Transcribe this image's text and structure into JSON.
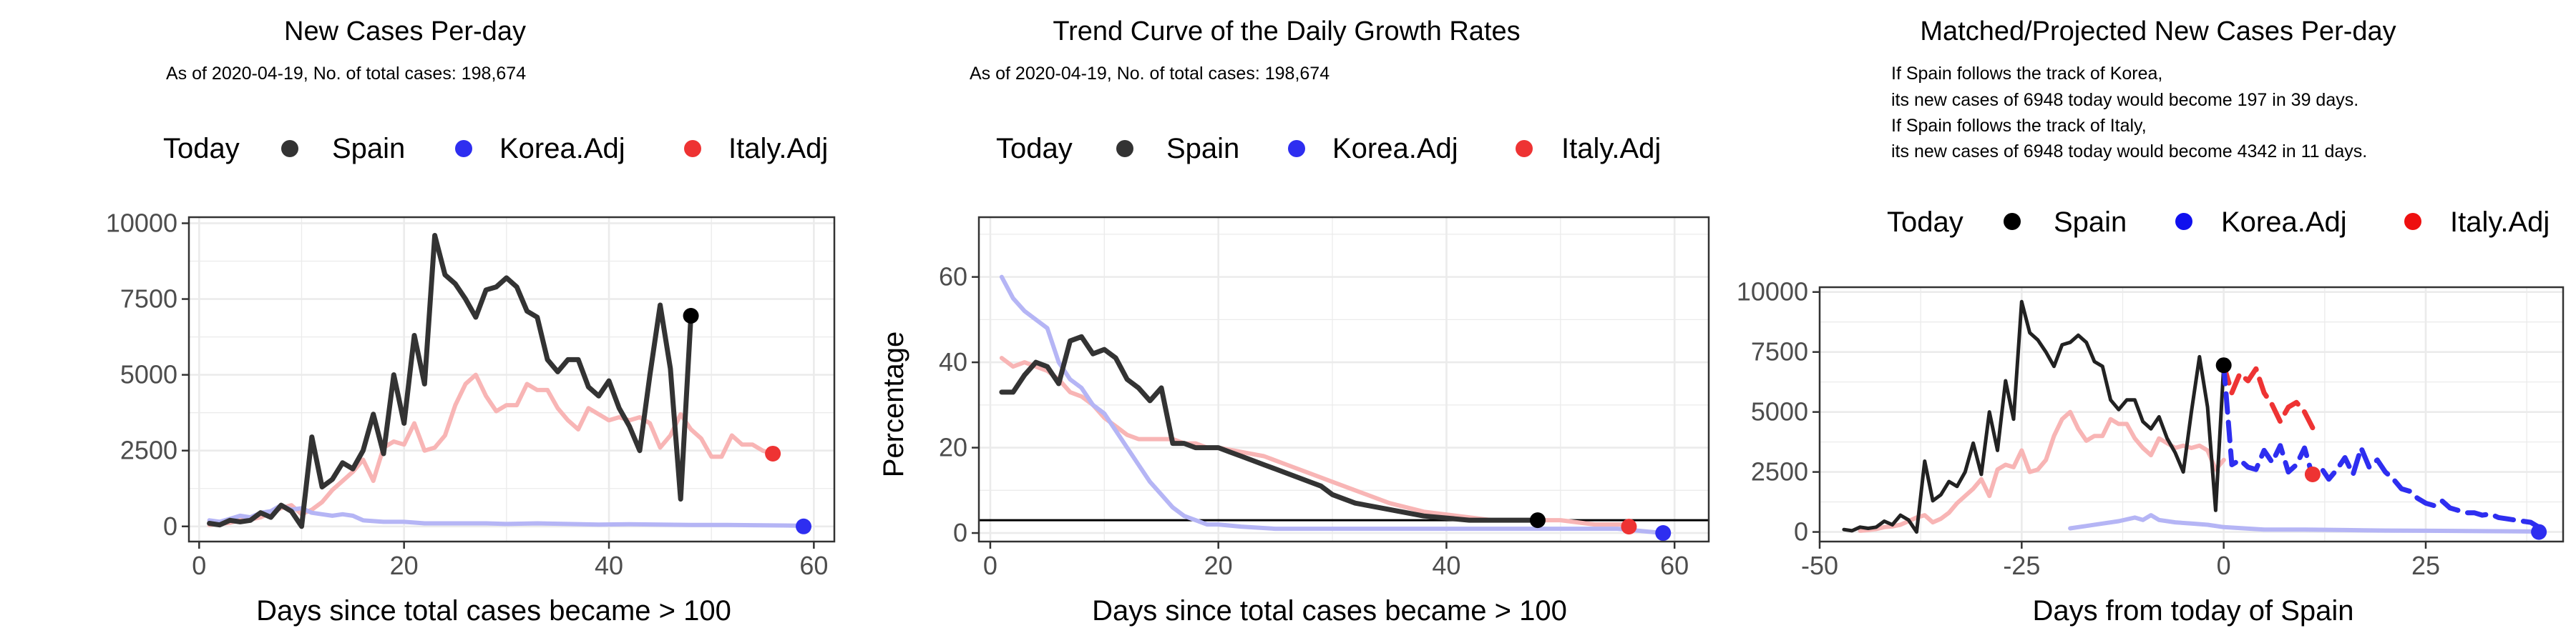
{
  "colors": {
    "spain": "#333333",
    "spain_today": "#000000",
    "korea": "#2e2ef0",
    "korea_light": "#b5b5f5",
    "italy": "#ee3333",
    "italy_light": "#f8b5b5",
    "grid": "#ebebeb",
    "panel_border": "#333333"
  },
  "chart_data": [
    {
      "type": "line",
      "title": "New Cases Per-day",
      "subtitle": "As of 2020-04-19, No. of total cases: 198,674",
      "xlabel": "Days since total cases became > 100",
      "ylabel": "",
      "xlim": [
        -1,
        62
      ],
      "ylim": [
        -500,
        10200
      ],
      "x_ticks": [
        0,
        20,
        40,
        60
      ],
      "y_ticks": [
        0,
        2500,
        5000,
        7500,
        10000
      ],
      "legend": {
        "placement": "top",
        "title": "Today",
        "entries": [
          "Spain",
          "Korea.Adj",
          "Italy.Adj"
        ]
      },
      "series": [
        {
          "key": "italy",
          "name": "Italy.Adj",
          "style": "light",
          "x": [
            1,
            2,
            3,
            4,
            5,
            6,
            7,
            8,
            9,
            10,
            11,
            12,
            13,
            14,
            15,
            16,
            17,
            18,
            19,
            20,
            21,
            22,
            23,
            24,
            25,
            26,
            27,
            28,
            29,
            30,
            31,
            32,
            33,
            34,
            35,
            36,
            37,
            38,
            39,
            40,
            41,
            42,
            43,
            44,
            45,
            46,
            47,
            48,
            49,
            50,
            51,
            52,
            53,
            54,
            55,
            56
          ],
          "y": [
            50,
            80,
            120,
            200,
            230,
            300,
            450,
            600,
            700,
            400,
            550,
            800,
            1200,
            1500,
            1800,
            2200,
            1500,
            2600,
            2800,
            2700,
            3400,
            2500,
            2600,
            3000,
            4000,
            4700,
            5000,
            4300,
            3800,
            4000,
            4000,
            4700,
            4500,
            4500,
            3900,
            3500,
            3200,
            3900,
            3700,
            3500,
            3600,
            3500,
            3600,
            3400,
            2600,
            3000,
            3700,
            3200,
            2900,
            2300,
            2300,
            3000,
            2700,
            2700,
            2500,
            2400
          ]
        },
        {
          "key": "korea",
          "name": "Korea.Adj",
          "style": "light",
          "x": [
            1,
            2,
            3,
            4,
            5,
            6,
            7,
            8,
            9,
            10,
            11,
            12,
            13,
            14,
            15,
            16,
            18,
            20,
            22,
            25,
            28,
            30,
            33,
            36,
            39,
            42,
            45,
            48,
            51,
            54,
            57,
            59
          ],
          "y": [
            200,
            150,
            250,
            350,
            300,
            450,
            500,
            700,
            550,
            600,
            450,
            400,
            350,
            400,
            350,
            200,
            150,
            150,
            100,
            100,
            100,
            80,
            100,
            80,
            60,
            70,
            60,
            50,
            50,
            40,
            30,
            20
          ]
        },
        {
          "key": "spain",
          "name": "Spain",
          "style": "dark",
          "x": [
            1,
            2,
            3,
            4,
            5,
            6,
            7,
            8,
            9,
            10,
            11,
            12,
            13,
            14,
            15,
            16,
            17,
            18,
            19,
            20,
            21,
            22,
            23,
            24,
            25,
            26,
            27,
            28,
            29,
            30,
            31,
            32,
            33,
            34,
            35,
            36,
            37,
            38,
            39,
            40,
            41,
            42,
            43,
            44,
            45,
            46,
            47,
            48
          ],
          "y": [
            100,
            50,
            200,
            150,
            200,
            450,
            300,
            700,
            500,
            0,
            2950,
            1300,
            1550,
            2100,
            1900,
            2500,
            3700,
            2400,
            5000,
            3400,
            6300,
            4700,
            9600,
            8300,
            8000,
            7500,
            6900,
            7800,
            7900,
            8200,
            7900,
            7100,
            6900,
            5500,
            5100,
            5500,
            5500,
            4600,
            4300,
            4800,
            3900,
            3300,
            2500,
            5000,
            7300,
            5200,
            900,
            6948
          ]
        }
      ],
      "points": [
        {
          "key": "spain_today",
          "name": "Spain",
          "x": 48,
          "y": 6948
        },
        {
          "key": "korea",
          "name": "Korea.Adj",
          "x": 59,
          "y": 0
        },
        {
          "key": "italy",
          "name": "Italy.Adj",
          "x": 56,
          "y": 2400
        }
      ]
    },
    {
      "type": "line",
      "title": "Trend Curve of the Daily Growth Rates",
      "subtitle": "As of 2020-04-19, No. of total cases: 198,674",
      "xlabel": "Days since total cases became > 100",
      "ylabel": "Percentage",
      "xlim": [
        -1,
        63
      ],
      "ylim": [
        -2,
        74
      ],
      "x_ticks": [
        0,
        20,
        40,
        60
      ],
      "y_ticks": [
        0,
        20,
        40,
        60
      ],
      "hline": 3,
      "legend": {
        "placement": "top",
        "title": "Today",
        "entries": [
          "Spain",
          "Korea.Adj",
          "Italy.Adj"
        ]
      },
      "series": [
        {
          "key": "italy",
          "name": "Italy.Adj",
          "style": "light",
          "x": [
            1,
            2,
            3,
            4,
            5,
            6,
            7,
            8,
            9,
            10,
            11,
            12,
            13,
            14,
            15,
            16,
            17,
            18,
            19,
            20,
            22,
            24,
            26,
            28,
            30,
            32,
            35,
            38,
            41,
            44,
            47,
            50,
            53,
            56
          ],
          "y": [
            41,
            39,
            40,
            39,
            38,
            36,
            33,
            32,
            30,
            27,
            25,
            23,
            22,
            22,
            22,
            22,
            21,
            21,
            20,
            20,
            19,
            18,
            16,
            14,
            12,
            10,
            7,
            5,
            4,
            3,
            3,
            3,
            2,
            2
          ]
        },
        {
          "key": "korea",
          "name": "Korea.Adj",
          "style": "light",
          "x": [
            1,
            2,
            3,
            4,
            5,
            6,
            7,
            8,
            9,
            10,
            11,
            12,
            13,
            14,
            15,
            16,
            17,
            18,
            19,
            20,
            22,
            25,
            30,
            35,
            40,
            45,
            50,
            55,
            59
          ],
          "y": [
            60,
            55,
            52,
            50,
            48,
            40,
            36,
            34,
            30,
            28,
            24,
            20,
            16,
            12,
            9,
            6,
            4,
            3,
            2,
            2,
            1.5,
            1,
            1,
            1,
            1,
            1,
            1,
            1,
            0
          ]
        },
        {
          "key": "spain",
          "name": "Spain",
          "style": "dark",
          "x": [
            1,
            2,
            3,
            4,
            5,
            6,
            7,
            8,
            9,
            10,
            11,
            12,
            13,
            14,
            15,
            16,
            17,
            18,
            19,
            20,
            21,
            22,
            23,
            24,
            25,
            26,
            27,
            28,
            29,
            30,
            32,
            34,
            36,
            38,
            40,
            42,
            44,
            46,
            48
          ],
          "y": [
            33,
            33,
            37,
            40,
            39,
            35,
            45,
            46,
            42,
            43,
            41,
            36,
            34,
            31,
            34,
            21,
            21,
            20,
            20,
            20,
            19,
            18,
            17,
            16,
            15,
            14,
            13,
            12,
            11,
            9,
            7,
            6,
            5,
            4,
            3.5,
            3,
            3,
            3,
            3
          ]
        }
      ],
      "points": [
        {
          "key": "spain_today",
          "name": "Spain",
          "x": 48,
          "y": 3
        },
        {
          "key": "korea",
          "name": "Korea.Adj",
          "x": 59,
          "y": 0
        },
        {
          "key": "italy",
          "name": "Italy.Adj",
          "x": 56,
          "y": 1.5
        }
      ]
    },
    {
      "type": "line",
      "title": "Matched/Projected New Cases Per-day",
      "annotations": [
        "If Spain follows the track of Korea,",
        "its new cases of 6948 today would become 197 in 39 days.",
        "If Spain follows the track of Italy,",
        "its new cases of 6948 today would become 4342 in 11 days."
      ],
      "xlabel": "Days from today of Spain",
      "ylabel": "",
      "xlim": [
        -50,
        42
      ],
      "ylim": [
        -400,
        10200
      ],
      "x_ticks": [
        -50,
        -25,
        0,
        25
      ],
      "y_ticks": [
        0,
        2500,
        5000,
        7500,
        10000
      ],
      "legend": {
        "placement": "top",
        "title": "Today",
        "entries": [
          "Spain",
          "Korea.Adj",
          "Italy.Adj"
        ]
      },
      "series": [
        {
          "key": "italy",
          "name": "Italy.Adj",
          "style": "light",
          "x": [
            -45,
            -44,
            -43,
            -42,
            -41,
            -40,
            -39,
            -38,
            -37,
            -36,
            -35,
            -34,
            -33,
            -32,
            -31,
            -30,
            -29,
            -28,
            -27,
            -26,
            -25,
            -24,
            -23,
            -22,
            -21,
            -20,
            -19,
            -18,
            -17,
            -16,
            -15,
            -14,
            -13,
            -12,
            -11,
            -10,
            -9,
            -8,
            -7,
            -6,
            -5,
            -4,
            -3,
            -2,
            -1,
            0
          ],
          "y": [
            50,
            80,
            120,
            200,
            230,
            300,
            450,
            600,
            700,
            400,
            550,
            800,
            1200,
            1500,
            1800,
            2200,
            1500,
            2600,
            2800,
            2700,
            3400,
            2500,
            2600,
            3000,
            4000,
            4700,
            5000,
            4300,
            3800,
            4000,
            4000,
            4700,
            4500,
            4500,
            3900,
            3500,
            3200,
            3900,
            3700,
            3500,
            3600,
            3500,
            3600,
            3400,
            2600,
            3000
          ]
        },
        {
          "key": "korea",
          "name": "Korea.Adj",
          "style": "light",
          "x": [
            -19,
            -17,
            -15,
            -13,
            -11,
            -10,
            -9,
            -8,
            -6,
            -4,
            -2,
            0,
            5,
            10,
            15,
            20,
            25,
            30,
            35,
            38
          ],
          "y": [
            150,
            250,
            350,
            450,
            600,
            500,
            700,
            500,
            400,
            350,
            300,
            200,
            100,
            100,
            80,
            60,
            50,
            40,
            30,
            20
          ]
        },
        {
          "key": "spain",
          "name": "Spain",
          "style": "dark-thin",
          "x": [
            -47,
            -46,
            -45,
            -44,
            -43,
            -42,
            -41,
            -40,
            -39,
            -38,
            -37,
            -36,
            -35,
            -34,
            -33,
            -32,
            -31,
            -30,
            -29,
            -28,
            -27,
            -26,
            -25,
            -24,
            -23,
            -22,
            -21,
            -20,
            -19,
            -18,
            -17,
            -16,
            -15,
            -14,
            -13,
            -12,
            -11,
            -10,
            -9,
            -8,
            -7,
            -6,
            -5,
            -4,
            -3,
            -2,
            -1,
            0
          ],
          "y": [
            100,
            50,
            200,
            150,
            200,
            450,
            300,
            700,
            500,
            0,
            2950,
            1300,
            1550,
            2100,
            1900,
            2500,
            3700,
            2400,
            5000,
            3400,
            6300,
            4700,
            9600,
            8300,
            8000,
            7500,
            6900,
            7800,
            7900,
            8200,
            7900,
            7100,
            6900,
            5500,
            5100,
            5500,
            5500,
            4600,
            4300,
            4800,
            3900,
            3300,
            2500,
            5000,
            7300,
            5200,
            900,
            6948
          ]
        },
        {
          "key": "italy",
          "name": "Italy.Adj",
          "style": "dashed",
          "x": [
            0,
            1,
            2,
            3,
            4,
            5,
            6,
            7,
            8,
            9,
            10,
            11
          ],
          "y": [
            6948,
            5800,
            6600,
            6300,
            6800,
            5800,
            5300,
            4600,
            5200,
            5400,
            5000,
            4342
          ]
        },
        {
          "key": "korea",
          "name": "Korea.Adj",
          "style": "dashed",
          "x": [
            0,
            1,
            2,
            3,
            4,
            5,
            6,
            7,
            8,
            9,
            10,
            11,
            12,
            13,
            14,
            15,
            16,
            17,
            18,
            19,
            20,
            21,
            22,
            23,
            24,
            25,
            26,
            27,
            28,
            29,
            30,
            31,
            32,
            33,
            34,
            35,
            36,
            37,
            38,
            39
          ],
          "y": [
            6948,
            2800,
            3000,
            2700,
            2600,
            3400,
            2900,
            3600,
            2500,
            2800,
            3500,
            2300,
            2700,
            2200,
            2600,
            3100,
            2400,
            3500,
            2700,
            3000,
            2500,
            2200,
            1800,
            1700,
            1400,
            1200,
            1100,
            1300,
            1000,
            900,
            800,
            800,
            700,
            750,
            600,
            550,
            500,
            450,
            400,
            197
          ]
        }
      ],
      "points": [
        {
          "key": "spain_today",
          "name": "Spain",
          "x": 0,
          "y": 6948
        },
        {
          "key": "korea",
          "name": "Korea.Adj",
          "x": 39,
          "y": 0
        },
        {
          "key": "italy",
          "name": "Italy.Adj",
          "x": 11,
          "y": 2400
        }
      ]
    }
  ]
}
